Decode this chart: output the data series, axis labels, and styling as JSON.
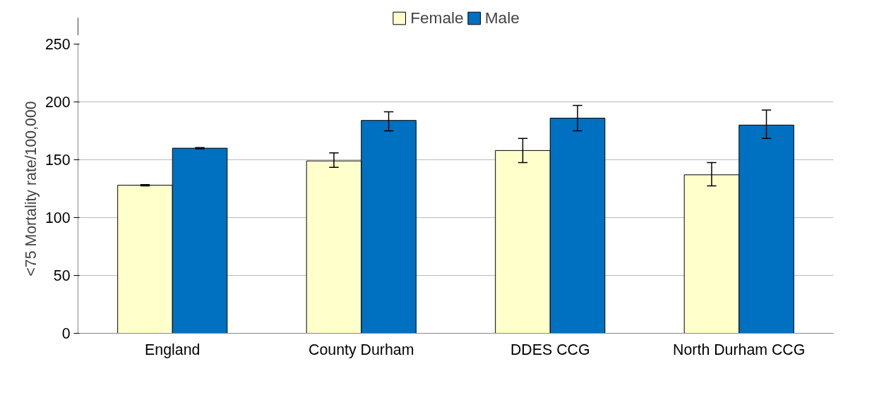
{
  "chart_data": {
    "type": "bar",
    "ylabel": "<75 Mortality rate/100,000",
    "categories": [
      "England",
      "County Durham",
      "DDES CCG",
      "North Durham CCG"
    ],
    "series": [
      {
        "name": "Female",
        "color": "#ffffcc",
        "values": [
          128,
          149,
          158,
          137
        ],
        "errors": [
          [
            127.5,
            128.5
          ],
          [
            143.5,
            156
          ],
          [
            147.5,
            168.5
          ],
          [
            127.5,
            147.5
          ]
        ]
      },
      {
        "name": "Male",
        "color": "#0070c0",
        "values": [
          160,
          184,
          186,
          180
        ],
        "errors": [
          [
            159.5,
            160.5
          ],
          [
            175,
            191.5
          ],
          [
            175,
            197
          ],
          [
            168.5,
            193
          ]
        ]
      }
    ],
    "ylim": [
      0,
      250
    ],
    "yticks": [
      0,
      50,
      100,
      150,
      200,
      250
    ],
    "grid": "y",
    "legend": "top"
  }
}
